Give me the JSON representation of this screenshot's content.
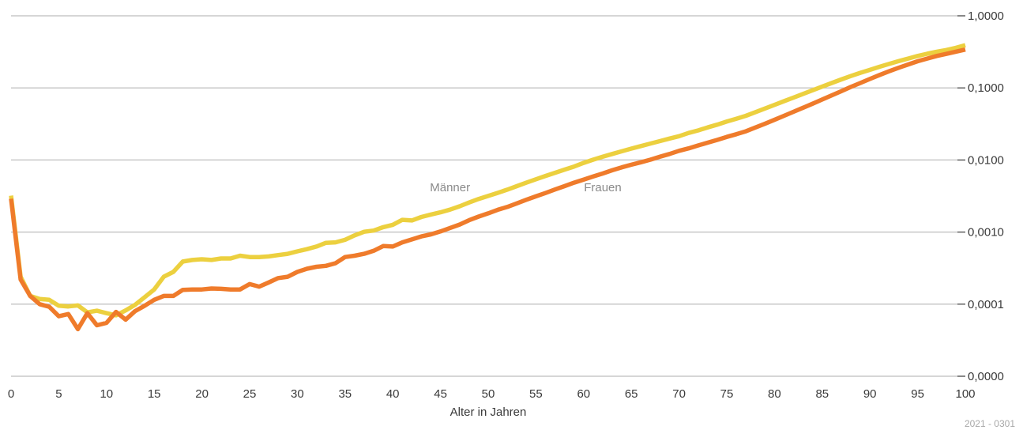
{
  "chart_data": {
    "type": "line",
    "xlabel": "Alter in Jahren",
    "ylabel": "",
    "ylog": true,
    "ylim": [
      1e-05,
      1
    ],
    "x_tick_labels": [
      "0",
      "5",
      "10",
      "15",
      "20",
      "25",
      "30",
      "35",
      "40",
      "45",
      "50",
      "55",
      "60",
      "65",
      "70",
      "75",
      "80",
      "85",
      "90",
      "95",
      "100"
    ],
    "y_tick_labels": [
      "0,0000",
      "0,0001",
      "0,0010",
      "0,0100",
      "0,1000",
      "1,0000"
    ],
    "y_tick_values": [
      1e-05,
      0.0001,
      0.001,
      0.01,
      0.1,
      1
    ],
    "grid": true,
    "x": [
      0,
      1,
      2,
      3,
      4,
      5,
      6,
      7,
      8,
      9,
      10,
      11,
      12,
      13,
      14,
      15,
      16,
      17,
      18,
      19,
      20,
      21,
      22,
      23,
      24,
      25,
      26,
      27,
      28,
      29,
      30,
      31,
      32,
      33,
      34,
      35,
      36,
      37,
      38,
      39,
      40,
      41,
      42,
      43,
      44,
      45,
      46,
      47,
      48,
      49,
      50,
      51,
      52,
      53,
      54,
      55,
      56,
      57,
      58,
      59,
      60,
      61,
      62,
      63,
      64,
      65,
      66,
      67,
      68,
      69,
      70,
      71,
      72,
      73,
      74,
      75,
      76,
      77,
      78,
      79,
      80,
      81,
      82,
      83,
      84,
      85,
      86,
      87,
      88,
      89,
      90,
      91,
      92,
      93,
      94,
      95,
      96,
      97,
      98,
      99,
      100
    ],
    "series": [
      {
        "name": "Männer",
        "color": "#ecd03f",
        "values": [
          0.0032,
          0.00024,
          0.00013,
          0.000118,
          0.000115,
          9.5e-05,
          9.3e-05,
          9.6e-05,
          7.7e-05,
          8.1e-05,
          7.5e-05,
          7e-05,
          8.2e-05,
          9.8e-05,
          0.000125,
          0.00016,
          0.00024,
          0.00028,
          0.00039,
          0.00041,
          0.00042,
          0.00041,
          0.00043,
          0.00043,
          0.00047,
          0.00045,
          0.00045,
          0.00046,
          0.00048,
          0.0005,
          0.00054,
          0.00058,
          0.00063,
          0.00071,
          0.00072,
          0.00078,
          0.0009,
          0.00101,
          0.00105,
          0.00117,
          0.00126,
          0.00148,
          0.00145,
          0.00162,
          0.00175,
          0.00188,
          0.00205,
          0.00228,
          0.00257,
          0.00288,
          0.00317,
          0.0035,
          0.00388,
          0.00434,
          0.00485,
          0.0054,
          0.006,
          0.00665,
          0.00735,
          0.0081,
          0.0091,
          0.0101,
          0.0111,
          0.0121,
          0.0132,
          0.0144,
          0.0156,
          0.0169,
          0.0183,
          0.0198,
          0.0214,
          0.0237,
          0.0257,
          0.0283,
          0.0309,
          0.0341,
          0.0374,
          0.041,
          0.0461,
          0.0518,
          0.0581,
          0.0654,
          0.0735,
          0.0825,
          0.0927,
          0.1042,
          0.117,
          0.131,
          0.146,
          0.162,
          0.178,
          0.196,
          0.215,
          0.235,
          0.255,
          0.277,
          0.298,
          0.317,
          0.335,
          0.36,
          0.392
        ]
      },
      {
        "name": "Frauen",
        "color": "#ef7b2b",
        "values": [
          0.0029,
          0.00022,
          0.00013,
          0.0001,
          9.2e-05,
          6.8e-05,
          7.3e-05,
          4.5e-05,
          7.5e-05,
          5.1e-05,
          5.5e-05,
          7.8e-05,
          6.1e-05,
          8e-05,
          9.5e-05,
          0.000115,
          0.00013,
          0.00013,
          0.000158,
          0.00016,
          0.00016,
          0.000165,
          0.000163,
          0.00016,
          0.00016,
          0.00019,
          0.000175,
          0.0002,
          0.00023,
          0.00024,
          0.00028,
          0.00031,
          0.00033,
          0.00034,
          0.00037,
          0.00045,
          0.00047,
          0.0005,
          0.00055,
          0.00064,
          0.00063,
          0.00072,
          0.00079,
          0.00087,
          0.00093,
          0.00102,
          0.00114,
          0.00127,
          0.00146,
          0.00164,
          0.00182,
          0.00204,
          0.00223,
          0.0025,
          0.00281,
          0.00313,
          0.00348,
          0.0039,
          0.00434,
          0.00484,
          0.00535,
          0.0059,
          0.0065,
          0.0072,
          0.0079,
          0.0086,
          0.0093,
          0.0101,
          0.0111,
          0.0121,
          0.0134,
          0.0145,
          0.0159,
          0.0174,
          0.019,
          0.0209,
          0.0228,
          0.025,
          0.0282,
          0.0318,
          0.0361,
          0.041,
          0.0466,
          0.053,
          0.0603,
          0.069,
          0.0788,
          0.09,
          0.103,
          0.117,
          0.133,
          0.151,
          0.17,
          0.19,
          0.211,
          0.234,
          0.255,
          0.277,
          0.296,
          0.318,
          0.34
        ]
      }
    ],
    "annotations": [
      {
        "text": "Männer",
        "x": 46,
        "y": 0.0042,
        "series": "Männer"
      },
      {
        "text": "Frauen",
        "x": 62,
        "y": 0.0042,
        "series": "Frauen"
      }
    ]
  },
  "footer": {
    "code": "2021 - 0301"
  }
}
